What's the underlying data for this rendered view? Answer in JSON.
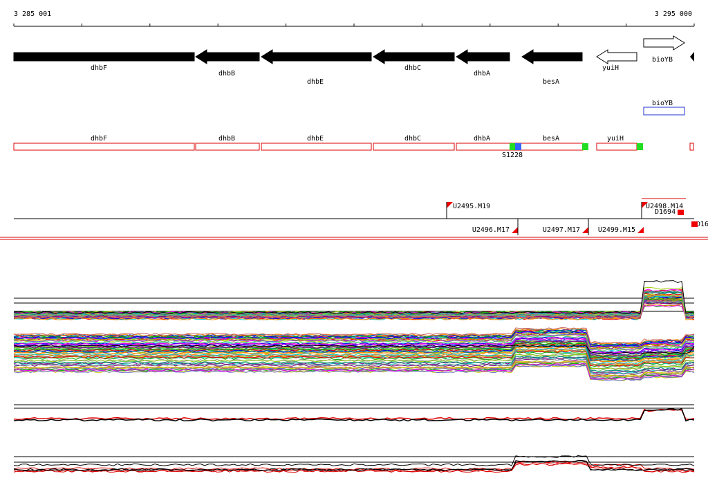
{
  "ruler": {
    "start": "3 285 001",
    "end": "3 295 000"
  },
  "genes": [
    "dhbF",
    "dhbB",
    "dhbE",
    "dhbC",
    "dhbA",
    "besA",
    "yuiH",
    "bioYB"
  ],
  "operon_track": {
    "label": "bioYB"
  },
  "features": [
    "dhbF",
    "dhbB",
    "dhbE",
    "dhbC",
    "dhbA",
    "besA",
    "yuiH"
  ],
  "feature_marker": "S1228",
  "transcripts": [
    "U2495.M19",
    "U2498.M14",
    "D1694",
    "U2496.M17",
    "U2497.M17",
    "U2499.M15",
    "D16"
  ]
}
